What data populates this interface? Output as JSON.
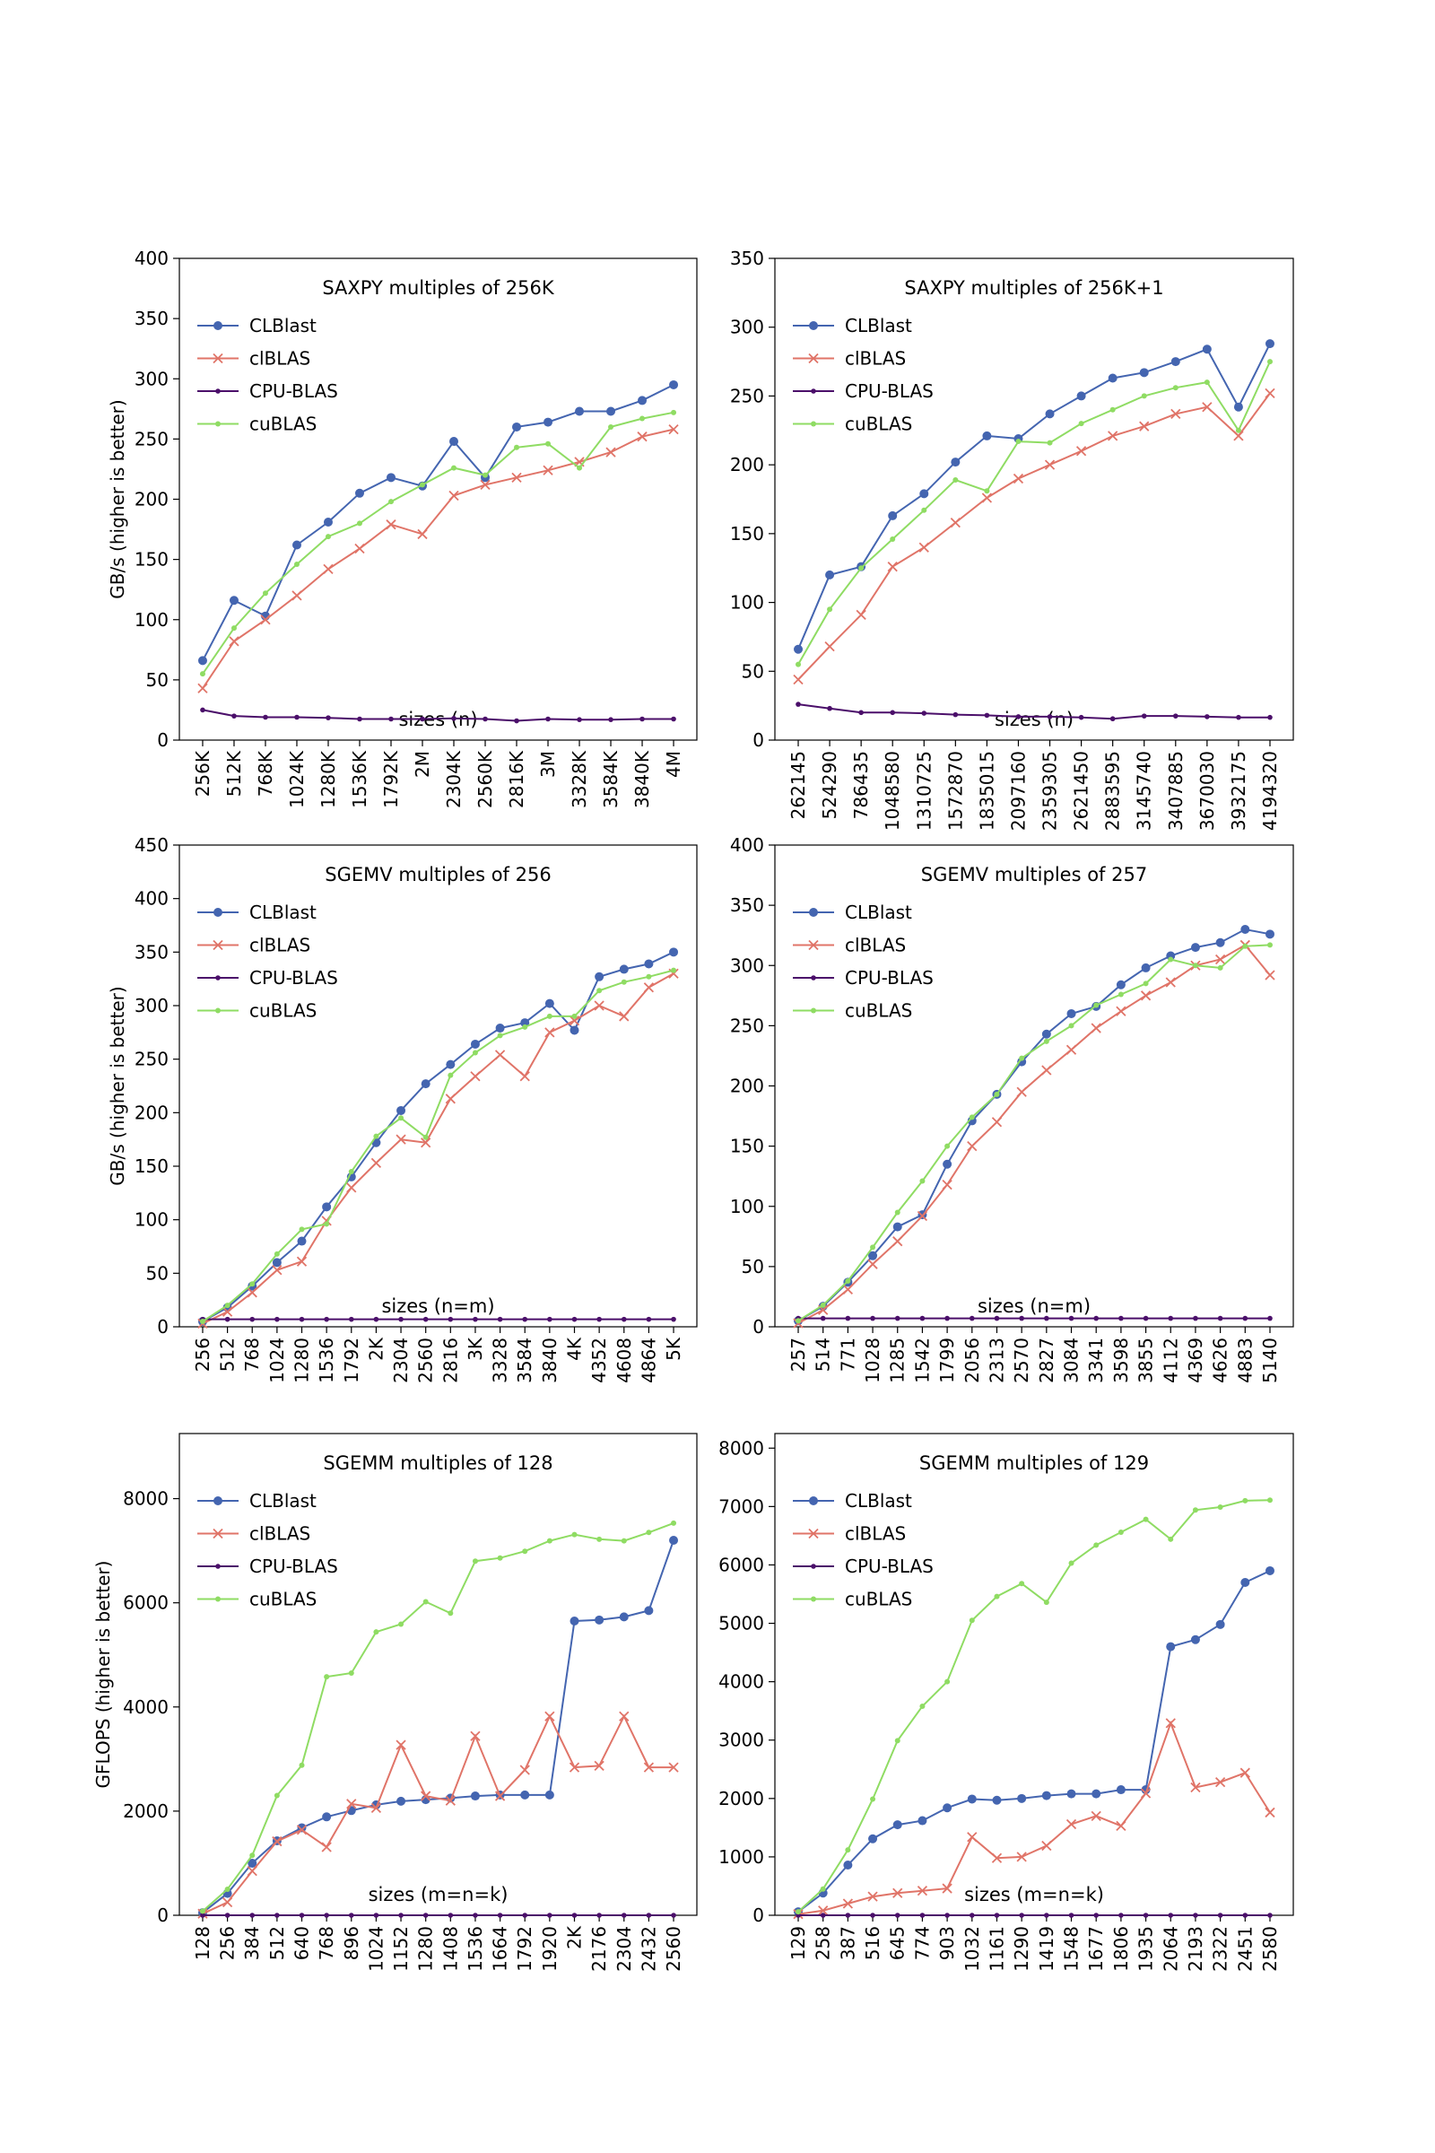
{
  "figure": {
    "colors": {
      "CLBlast": "#4465b0",
      "clBLAS": "#e07468",
      "CPU-BLAS": "#4b0f6a",
      "cuBLAS": "#8fdc63"
    }
  },
  "chart_data": [
    {
      "type": "line",
      "title": "SAXPY multiples of 256K",
      "ylabel": "GB/s (higher is better)",
      "xlabel": "sizes (n)",
      "ylim": [
        0,
        400
      ],
      "yticks": [
        0,
        50,
        100,
        150,
        200,
        250,
        300,
        350,
        400
      ],
      "grid": false,
      "legend": "top-left",
      "categories": [
        "256K",
        "512K",
        "768K",
        "1024K",
        "1280K",
        "1536K",
        "1792K",
        "2M",
        "2304K",
        "2560K",
        "2816K",
        "3M",
        "3328K",
        "3584K",
        "3840K",
        "4M"
      ],
      "series": [
        {
          "name": "CLBlast",
          "values": [
            66,
            116,
            103,
            162,
            181,
            205,
            218,
            211,
            248,
            218,
            260,
            264,
            273,
            273,
            282,
            295
          ]
        },
        {
          "name": "clBLAS",
          "values": [
            43,
            82,
            100,
            120,
            142,
            159,
            179,
            171,
            203,
            212,
            218,
            224,
            231,
            239,
            252,
            258
          ]
        },
        {
          "name": "CPU-BLAS",
          "values": [
            25,
            20,
            19,
            19,
            18.5,
            17.5,
            17.5,
            17.5,
            18,
            17.5,
            16,
            17.5,
            17,
            17,
            17.5,
            17.5
          ]
        },
        {
          "name": "cuBLAS",
          "values": [
            55,
            93,
            122,
            146,
            169,
            180,
            198,
            212,
            226,
            220,
            243,
            246,
            226,
            260,
            267,
            272
          ]
        }
      ]
    },
    {
      "type": "line",
      "title": "SAXPY multiples of 256K+1",
      "ylabel": "",
      "xlabel": "sizes (n)",
      "ylim": [
        0,
        350
      ],
      "yticks": [
        0,
        50,
        100,
        150,
        200,
        250,
        300,
        350
      ],
      "grid": false,
      "legend": "top-left",
      "categories": [
        "262145",
        "524290",
        "786435",
        "1048580",
        "1310725",
        "1572870",
        "1835015",
        "2097160",
        "2359305",
        "2621450",
        "2883595",
        "3145740",
        "3407885",
        "3670030",
        "3932175",
        "4194320"
      ],
      "series": [
        {
          "name": "CLBlast",
          "values": [
            66,
            120,
            126,
            163,
            179,
            202,
            221,
            219,
            237,
            250,
            263,
            267,
            275,
            284,
            242,
            288
          ]
        },
        {
          "name": "clBLAS",
          "values": [
            44,
            68,
            91,
            126,
            140,
            158,
            176,
            190,
            200,
            210,
            221,
            228,
            237,
            242,
            221,
            252
          ]
        },
        {
          "name": "CPU-BLAS",
          "values": [
            26,
            23,
            20,
            20,
            19.5,
            18.5,
            18,
            17,
            17,
            16.5,
            15.5,
            17.5,
            17.5,
            17,
            16.5,
            16.5
          ]
        },
        {
          "name": "cuBLAS",
          "values": [
            55,
            95,
            125,
            146,
            167,
            189,
            181,
            217,
            216,
            230,
            240,
            250,
            256,
            260,
            225,
            275
          ]
        }
      ]
    },
    {
      "type": "line",
      "title": "SGEMV multiples of 256",
      "ylabel": "GB/s (higher is better)",
      "xlabel": "sizes (n=m)",
      "ylim": [
        0,
        450
      ],
      "yticks": [
        0,
        50,
        100,
        150,
        200,
        250,
        300,
        350,
        400,
        450
      ],
      "grid": false,
      "legend": "top-left",
      "categories": [
        "256",
        "512",
        "768",
        "1024",
        "1280",
        "1536",
        "1792",
        "2K",
        "2304",
        "2560",
        "2816",
        "3K",
        "3328",
        "3584",
        "3840",
        "4K",
        "4352",
        "4608",
        "4864",
        "5K"
      ],
      "series": [
        {
          "name": "CLBlast",
          "values": [
            5,
            18,
            38,
            60,
            80,
            112,
            140,
            172,
            202,
            227,
            245,
            264,
            279,
            284,
            302,
            277,
            327,
            334,
            339,
            350
          ]
        },
        {
          "name": "clBLAS",
          "values": [
            3,
            14,
            32,
            53,
            61,
            99,
            130,
            153,
            175,
            172,
            213,
            234,
            254,
            234,
            275,
            286,
            300,
            290,
            317,
            330
          ]
        },
        {
          "name": "CPU-BLAS",
          "values": [
            7,
            7,
            7,
            7,
            7,
            7,
            7,
            7,
            7,
            7,
            7,
            7,
            7,
            7,
            7,
            7,
            7,
            7,
            7,
            7
          ]
        },
        {
          "name": "cuBLAS",
          "values": [
            5,
            20,
            40,
            68,
            91,
            96,
            145,
            178,
            195,
            177,
            235,
            256,
            272,
            280,
            290,
            290,
            314,
            322,
            327,
            333
          ]
        }
      ]
    },
    {
      "type": "line",
      "title": "SGEMV multiples of 257",
      "ylabel": "",
      "xlabel": "sizes (n=m)",
      "ylim": [
        0,
        400
      ],
      "yticks": [
        0,
        50,
        100,
        150,
        200,
        250,
        300,
        350,
        400
      ],
      "grid": false,
      "legend": "top-left",
      "categories": [
        "257",
        "514",
        "771",
        "1028",
        "1285",
        "1542",
        "1799",
        "2056",
        "2313",
        "2570",
        "2827",
        "3084",
        "3341",
        "3598",
        "3855",
        "4112",
        "4369",
        "4626",
        "4883",
        "5140"
      ],
      "series": [
        {
          "name": "CLBlast",
          "values": [
            5,
            17,
            37,
            59,
            83,
            93,
            135,
            171,
            193,
            220,
            243,
            260,
            266,
            284,
            298,
            308,
            315,
            319,
            330,
            326
          ]
        },
        {
          "name": "clBLAS",
          "values": [
            3,
            14,
            31,
            52,
            71,
            92,
            118,
            150,
            170,
            195,
            213,
            230,
            248,
            262,
            275,
            286,
            300,
            305,
            317,
            292
          ]
        },
        {
          "name": "CPU-BLAS",
          "values": [
            7,
            7,
            7,
            7,
            7,
            7,
            7,
            7,
            7,
            7,
            7,
            7,
            7,
            7,
            7,
            7,
            7,
            7,
            7,
            7
          ]
        },
        {
          "name": "cuBLAS",
          "values": [
            5,
            18,
            38,
            66,
            95,
            121,
            150,
            174,
            193,
            223,
            237,
            250,
            267,
            276,
            285,
            305,
            300,
            298,
            316,
            317
          ]
        }
      ]
    },
    {
      "type": "line",
      "title": "SGEMM multiples of 128",
      "ylabel": "GFLOPS (higher is better)",
      "xlabel": "sizes (m=n=k)",
      "ylim": [
        0,
        9250
      ],
      "yticks": [
        0,
        2000,
        4000,
        6000,
        8000
      ],
      "grid": false,
      "legend": "top-left",
      "categories": [
        "128",
        "256",
        "384",
        "512",
        "640",
        "768",
        "896",
        "1024",
        "1152",
        "1280",
        "1408",
        "1536",
        "1664",
        "1792",
        "1920",
        "2K",
        "2176",
        "2304",
        "2432",
        "2560"
      ],
      "series": [
        {
          "name": "CLBlast",
          "values": [
            50,
            420,
            1000,
            1430,
            1680,
            1890,
            2010,
            2120,
            2190,
            2220,
            2250,
            2290,
            2310,
            2310,
            2310,
            5650,
            5670,
            5730,
            5850,
            7200
          ]
        },
        {
          "name": "clBLAS",
          "values": [
            30,
            250,
            850,
            1420,
            1640,
            1310,
            2140,
            2060,
            3270,
            2290,
            2200,
            3440,
            2290,
            2790,
            3820,
            2840,
            2870,
            3820,
            2840,
            2840
          ]
        },
        {
          "name": "CPU-BLAS",
          "values": [
            0,
            0,
            0,
            0,
            0,
            0,
            0,
            0,
            0,
            0,
            0,
            0,
            0,
            0,
            0,
            0,
            0,
            0,
            0,
            0
          ]
        },
        {
          "name": "cuBLAS",
          "values": [
            80,
            500,
            1150,
            2300,
            2880,
            4580,
            4650,
            5440,
            5590,
            6020,
            5800,
            6800,
            6860,
            6990,
            7190,
            7310,
            7220,
            7190,
            7350,
            7530
          ]
        }
      ]
    },
    {
      "type": "line",
      "title": "SGEMM multiples of 129",
      "ylabel": "",
      "xlabel": "sizes (m=n=k)",
      "ylim": [
        0,
        8250
      ],
      "yticks": [
        0,
        1000,
        2000,
        3000,
        4000,
        5000,
        6000,
        7000,
        8000
      ],
      "grid": false,
      "legend": "top-left",
      "categories": [
        "129",
        "258",
        "387",
        "516",
        "645",
        "774",
        "903",
        "1032",
        "1161",
        "1290",
        "1419",
        "1548",
        "1677",
        "1806",
        "1935",
        "2064",
        "2193",
        "2322",
        "2451",
        "2580"
      ],
      "series": [
        {
          "name": "CLBlast",
          "values": [
            60,
            380,
            860,
            1310,
            1550,
            1620,
            1840,
            1990,
            1970,
            2000,
            2050,
            2080,
            2080,
            2150,
            2150,
            4600,
            4720,
            4980,
            5700,
            5900
          ]
        },
        {
          "name": "clBLAS",
          "values": [
            20,
            80,
            200,
            320,
            380,
            420,
            460,
            1340,
            980,
            1000,
            1190,
            1560,
            1700,
            1530,
            2090,
            3290,
            2190,
            2280,
            2440,
            1760
          ]
        },
        {
          "name": "CPU-BLAS",
          "values": [
            0,
            0,
            0,
            0,
            0,
            0,
            0,
            0,
            0,
            0,
            0,
            0,
            0,
            0,
            0,
            0,
            0,
            0,
            0,
            0
          ]
        },
        {
          "name": "cuBLAS",
          "values": [
            60,
            450,
            1120,
            1990,
            2990,
            3580,
            4000,
            5050,
            5460,
            5680,
            5360,
            6030,
            6340,
            6560,
            6780,
            6440,
            6940,
            6990,
            7100,
            7110
          ]
        }
      ]
    }
  ]
}
